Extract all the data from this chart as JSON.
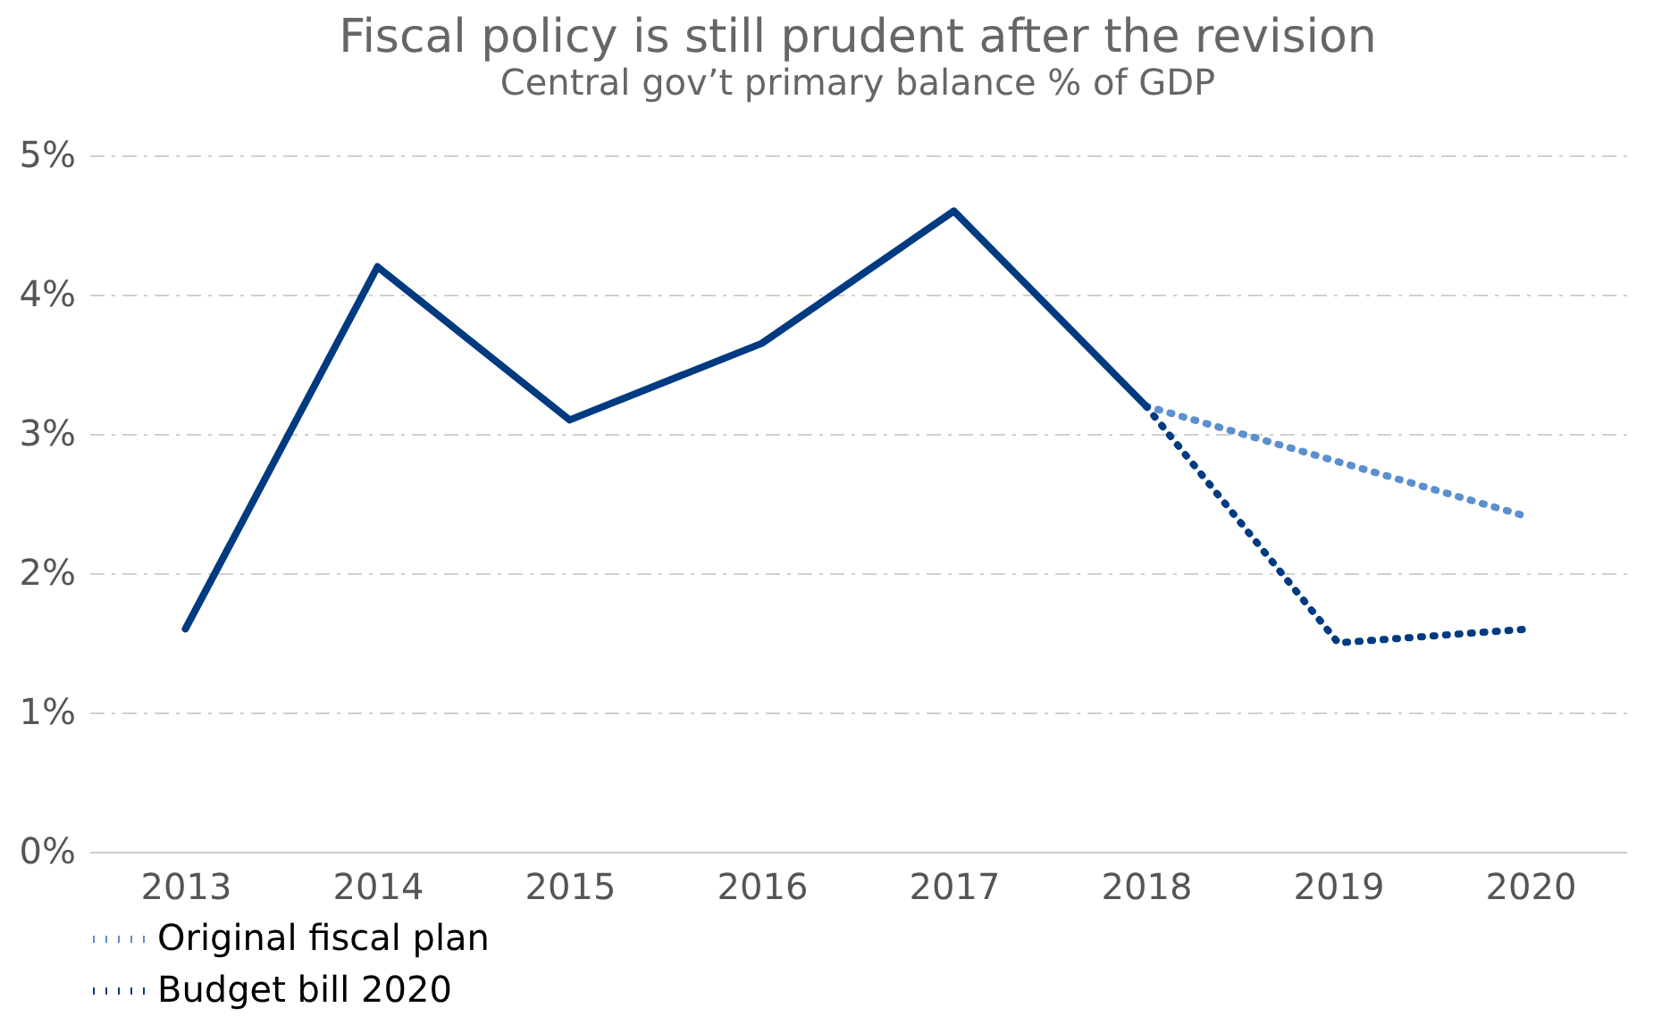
{
  "chart_data": {
    "type": "line",
    "title": "Fiscal policy is still prudent after the revision",
    "subtitle": "Central gov’t primary balance % of GDP",
    "categories": [
      "2013",
      "2014",
      "2015",
      "2016",
      "2017",
      "2018",
      "2019",
      "2020"
    ],
    "series": [
      {
        "color": "#003a80",
        "line_style": "solid",
        "values": [
          1.6,
          4.2,
          3.1,
          3.65,
          4.6,
          3.2,
          null,
          null
        ]
      },
      {
        "name": "Original fiscal plan",
        "color": "#5b8fd0",
        "line_style": "dotted",
        "values": [
          null,
          null,
          null,
          null,
          null,
          3.2,
          2.8,
          2.4
        ]
      },
      {
        "name": "Budget bill 2020",
        "color": "#003a80",
        "line_style": "dotted",
        "values": [
          null,
          null,
          null,
          null,
          null,
          3.2,
          1.5,
          1.6
        ]
      }
    ],
    "ylim": [
      0,
      5
    ],
    "yticks": [
      {
        "value": 0,
        "label": "0%"
      },
      {
        "value": 1,
        "label": "1%"
      },
      {
        "value": 2,
        "label": "2%"
      },
      {
        "value": 3,
        "label": "3%"
      },
      {
        "value": 4,
        "label": "4%"
      },
      {
        "value": 5,
        "label": "5%"
      }
    ],
    "grid": "y",
    "legend": "bottom left",
    "marker": "none"
  }
}
